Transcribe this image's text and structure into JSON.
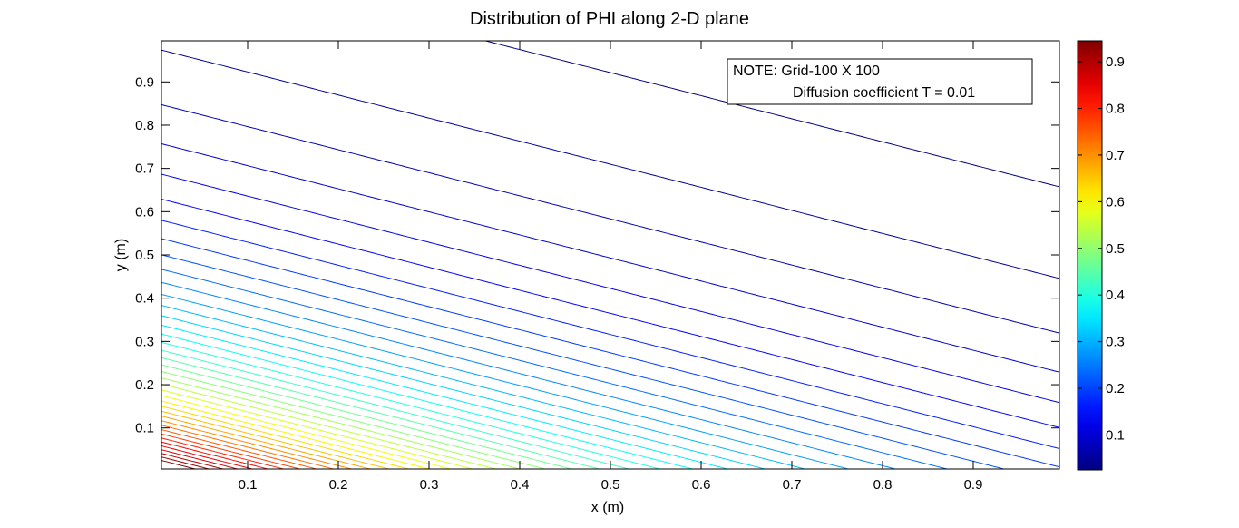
{
  "chart_data": {
    "type": "contour",
    "title": "Distribution of PHI along 2-D plane",
    "xlabel": "x (m)",
    "ylabel": "y (m)",
    "xlim": [
      0.005,
      0.995
    ],
    "ylim": [
      0.005,
      0.995
    ],
    "x_ticks": [
      0.1,
      0.2,
      0.3,
      0.4,
      0.5,
      0.6,
      0.7,
      0.8,
      0.9
    ],
    "y_ticks": [
      0.1,
      0.2,
      0.3,
      0.4,
      0.5,
      0.6,
      0.7,
      0.8,
      0.9
    ],
    "x_tick_labels": [
      "0.1",
      "0.2",
      "0.3",
      "0.4",
      "0.5",
      "0.6",
      "0.7",
      "0.8",
      "0.9"
    ],
    "y_tick_labels": [
      "0.1",
      "0.2",
      "0.3",
      "0.4",
      "0.5",
      "0.6",
      "0.7",
      "0.8",
      "0.9"
    ],
    "colorbar": {
      "colormap": "jet",
      "range": [
        0.025,
        0.945
      ],
      "ticks": [
        0.1,
        0.2,
        0.3,
        0.4,
        0.5,
        0.6,
        0.7,
        0.8,
        0.9
      ],
      "tick_labels": [
        "0.1",
        "0.2",
        "0.3",
        "0.4",
        "0.5",
        "0.6",
        "0.7",
        "0.8",
        "0.9"
      ]
    },
    "contours": {
      "count": 40,
      "range": [
        0.025,
        0.94
      ],
      "y_intercepts_at_x_min_sample": [
        {
          "level": 0.025,
          "y": 0.955
        },
        {
          "level": 0.1,
          "y": 0.82
        },
        {
          "level": 0.2,
          "y": 0.67
        },
        {
          "level": 0.3,
          "y": 0.52
        },
        {
          "level": 0.4,
          "y": 0.43
        },
        {
          "level": 0.5,
          "y": 0.36
        },
        {
          "level": 0.6,
          "y": 0.3
        },
        {
          "level": 0.7,
          "y": 0.24
        },
        {
          "level": 0.8,
          "y": 0.18
        }
      ],
      "outer_contour_sample": [
        [
          0.005,
          0.955
        ],
        [
          0.1,
          0.76
        ],
        [
          0.2,
          0.56
        ],
        [
          0.3,
          0.44
        ],
        [
          0.4,
          0.37
        ],
        [
          0.5,
          0.33
        ],
        [
          0.6,
          0.305
        ],
        [
          0.7,
          0.28
        ],
        [
          0.8,
          0.26
        ],
        [
          0.9,
          0.25
        ],
        [
          0.995,
          0.24
        ]
      ]
    },
    "grid": false,
    "legend": "none",
    "annotation": {
      "line1": "NOTE: Grid-100 X 100",
      "line2": "Diffusion coefficient T = 0.01",
      "placement": "top-right"
    }
  }
}
